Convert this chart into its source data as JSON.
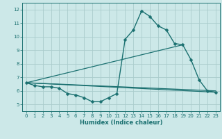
{
  "background_color": "#cce8e8",
  "grid_color": "#aacccc",
  "line_color": "#1a7070",
  "xlabel": "Humidex (Indice chaleur)",
  "xlim": [
    -0.5,
    23.5
  ],
  "ylim": [
    4.5,
    12.5
  ],
  "yticks": [
    5,
    6,
    7,
    8,
    9,
    10,
    11,
    12
  ],
  "xticks": [
    0,
    1,
    2,
    3,
    4,
    5,
    6,
    7,
    8,
    9,
    10,
    11,
    12,
    13,
    14,
    15,
    16,
    17,
    18,
    19,
    20,
    21,
    22,
    23
  ],
  "series_main": {
    "x": [
      0,
      1,
      2,
      3,
      4,
      5,
      6,
      7,
      8,
      9,
      10,
      11,
      12,
      13,
      14,
      15,
      16,
      17,
      18,
      19,
      20,
      21,
      22,
      23
    ],
    "y": [
      6.6,
      6.4,
      6.3,
      6.3,
      6.2,
      5.8,
      5.7,
      5.5,
      5.2,
      5.2,
      5.5,
      5.8,
      9.8,
      10.5,
      11.9,
      11.5,
      10.8,
      10.5,
      9.5,
      9.4,
      8.3,
      6.8,
      6.0,
      5.9
    ]
  },
  "series_lines": [
    {
      "x": [
        0,
        23
      ],
      "y": [
        6.6,
        6.0
      ]
    },
    {
      "x": [
        0,
        19
      ],
      "y": [
        6.6,
        9.4
      ]
    },
    {
      "x": [
        0,
        23
      ],
      "y": [
        6.6,
        5.9
      ]
    }
  ],
  "figsize": [
    3.2,
    2.0
  ],
  "dpi": 100,
  "tick_fontsize": 5,
  "xlabel_fontsize": 6,
  "linewidth_main": 1.0,
  "linewidth_straight": 0.9,
  "markersize": 2.5
}
